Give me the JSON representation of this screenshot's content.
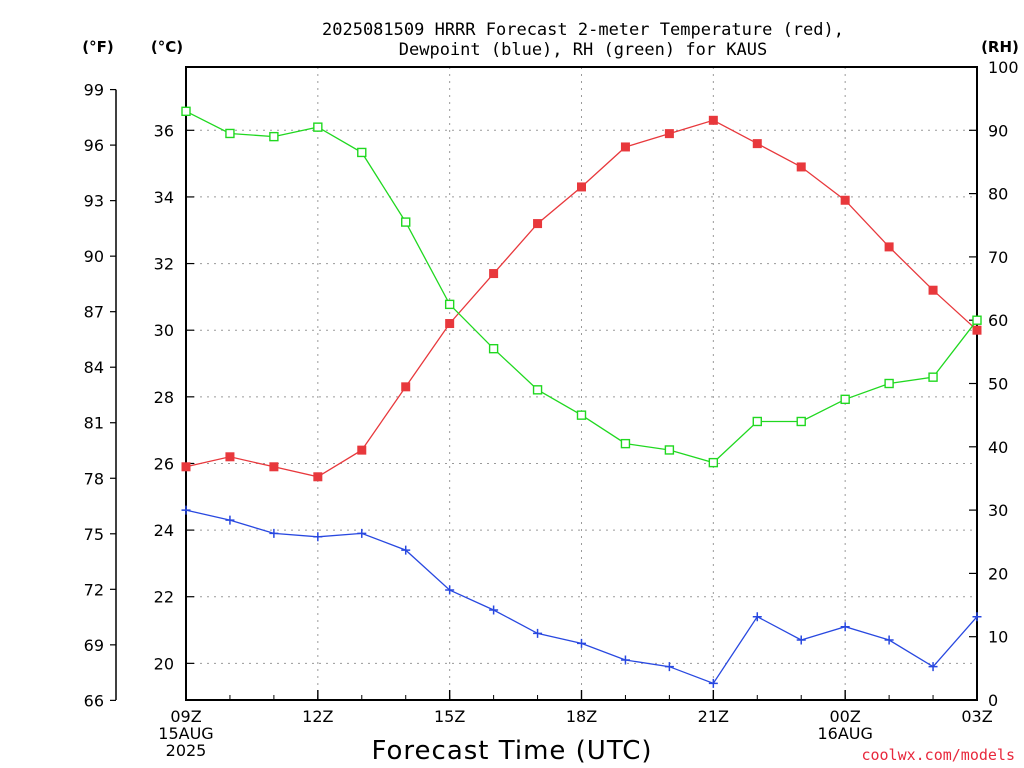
{
  "chart_data": {
    "type": "line",
    "title_lines": [
      "2025081509 HRRR Forecast 2-meter Temperature (red),",
      "Dewpoint (blue), RH (green) for KAUS"
    ],
    "xlabel": "Forecast Time (UTC)",
    "credit": "coolwx.com/models",
    "grid": true,
    "units": {
      "fahrenheit": "(°F)",
      "celsius": "(°C)",
      "rh": "(RH)"
    },
    "x_hours": [
      0,
      1,
      2,
      3,
      4,
      5,
      6,
      7,
      8,
      9,
      10,
      11,
      12,
      13,
      14,
      15,
      16,
      17,
      18
    ],
    "x_ticks": [
      {
        "hour": 0,
        "lines": [
          "09Z",
          "15AUG",
          "2025"
        ]
      },
      {
        "hour": 3,
        "lines": [
          "12Z"
        ]
      },
      {
        "hour": 6,
        "lines": [
          "15Z"
        ]
      },
      {
        "hour": 9,
        "lines": [
          "18Z"
        ]
      },
      {
        "hour": 12,
        "lines": [
          "21Z"
        ]
      },
      {
        "hour": 15,
        "lines": [
          "00Z",
          "16AUG"
        ]
      },
      {
        "hour": 18,
        "lines": [
          "03Z"
        ]
      }
    ],
    "xlim": [
      0,
      18
    ],
    "celsius_axis": {
      "ylim": [
        18.9,
        37.9
      ],
      "ticks": [
        20,
        22,
        24,
        26,
        28,
        30,
        32,
        34,
        36
      ]
    },
    "fahrenheit_axis": {
      "ticks": [
        66,
        69,
        72,
        75,
        78,
        81,
        84,
        87,
        90,
        93,
        96,
        99
      ]
    },
    "rh_axis": {
      "ylim": [
        0,
        100
      ],
      "ticks": [
        0,
        10,
        20,
        30,
        40,
        50,
        60,
        70,
        80,
        90,
        100
      ]
    },
    "series": [
      {
        "name": "Temperature",
        "axis": "celsius",
        "color": "#e8383c",
        "marker": "filled-square",
        "values": [
          25.9,
          26.2,
          25.9,
          25.6,
          26.4,
          28.3,
          30.2,
          31.7,
          33.2,
          34.3,
          35.5,
          35.9,
          36.3,
          35.6,
          34.9,
          33.9,
          32.5,
          31.2,
          30.0
        ]
      },
      {
        "name": "Dewpoint",
        "axis": "celsius",
        "color": "#2848e0",
        "marker": "plus",
        "values": [
          24.6,
          24.3,
          23.9,
          23.8,
          23.9,
          23.4,
          22.2,
          21.6,
          20.9,
          20.6,
          20.1,
          19.9,
          19.4,
          21.4,
          20.7,
          21.1,
          20.7,
          19.9,
          21.4
        ]
      },
      {
        "name": "RH",
        "axis": "rh",
        "color": "#20d820",
        "marker": "open-square",
        "values": [
          93,
          89.5,
          89,
          90.5,
          86.5,
          75.5,
          62.5,
          55.5,
          49,
          45,
          40.5,
          39.5,
          37.5,
          44,
          44,
          47.5,
          50,
          51,
          60
        ]
      }
    ]
  }
}
